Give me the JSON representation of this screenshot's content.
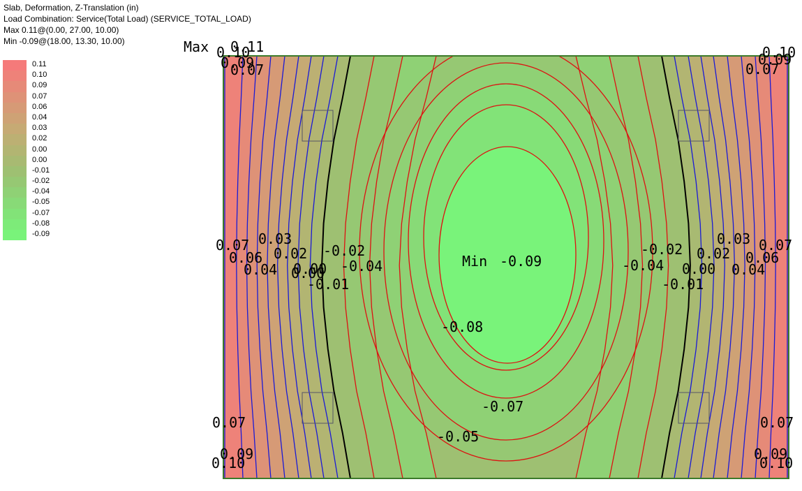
{
  "header": {
    "line1": "Slab, Deformation, Z-Translation (in)",
    "line2": "Load Combination: Service(Total Load) (SERVICE_TOTAL_LOAD)",
    "line3": "Max 0.11@(0.00, 27.00, 10.00)",
    "line4": "Min -0.09@(18.00, 13.30, 10.00)"
  },
  "legend": {
    "entries": [
      {
        "label": "0.11",
        "color": "#f57a7a"
      },
      {
        "label": "0.10",
        "color": "#ee8279"
      },
      {
        "label": "0.09",
        "color": "#e68a78"
      },
      {
        "label": "0.07",
        "color": "#de9277"
      },
      {
        "label": "0.06",
        "color": "#d69a76"
      },
      {
        "label": "0.04",
        "color": "#cea275"
      },
      {
        "label": "0.03",
        "color": "#c6aa74"
      },
      {
        "label": "0.02",
        "color": "#bcb073"
      },
      {
        "label": "0.00",
        "color": "#b2b572"
      },
      {
        "label": "0.00",
        "color": "#a8ba72"
      },
      {
        "label": "-0.01",
        "color": "#9ec072"
      },
      {
        "label": "-0.02",
        "color": "#96c873"
      },
      {
        "label": "-0.04",
        "color": "#8fd175"
      },
      {
        "label": "-0.05",
        "color": "#88da77"
      },
      {
        "label": "-0.07",
        "color": "#82e378"
      },
      {
        "label": "-0.08",
        "color": "#7deb79"
      },
      {
        "label": "-0.09",
        "color": "#79f37a"
      }
    ]
  },
  "plot": {
    "max_marker": "Max",
    "max_value": "0.11",
    "min_marker": "Min",
    "min_value": "-0.09",
    "contour_labels": [
      "0.10",
      "0.09",
      "0.07",
      "0.10",
      "0.09",
      "0.07",
      "0.07",
      "0.03",
      "0.06",
      "0.02",
      "0.04",
      "0.00",
      "0.00",
      "-0.01",
      "-0.02",
      "-0.04",
      "-0.02",
      "-0.04",
      "0.02",
      "0.00",
      "-0.01",
      "0.03",
      "0.07",
      "0.06",
      "0.04",
      "-0.08",
      "-0.07",
      "-0.05",
      "0.07",
      "0.09",
      "0.10",
      "0.07",
      "0.09",
      "0.10"
    ]
  },
  "colors": {
    "max_red": "#f57a7a",
    "min_green": "#79f37a",
    "contour_positive": "#1a1ad6",
    "contour_zero": "#000000",
    "contour_negative": "#dd1111",
    "slab_border": "#3c7a2a"
  }
}
